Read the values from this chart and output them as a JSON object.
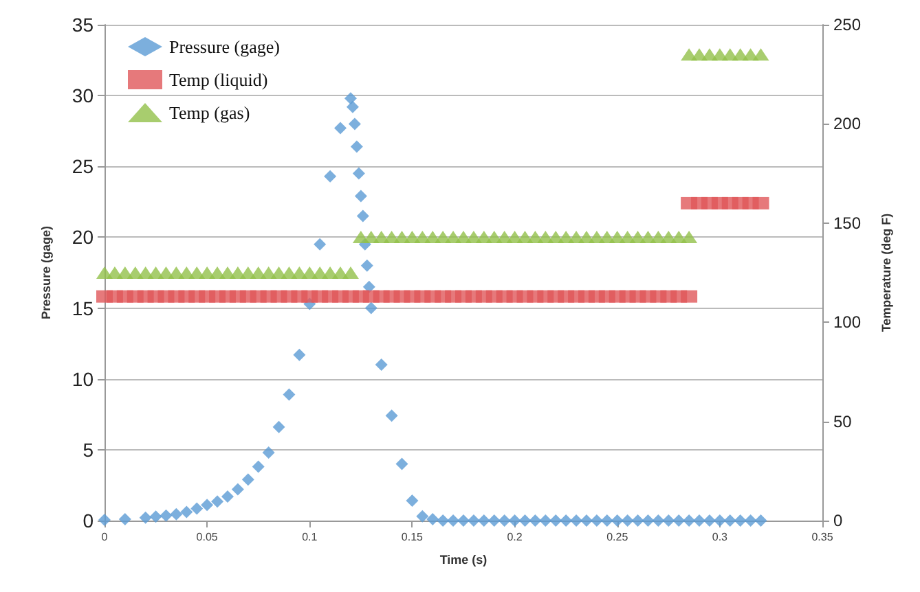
{
  "chart_data": {
    "type": "scatter",
    "xlabel": "Time (s)",
    "ylabel": "Pressure (gage)",
    "y2label": "Temperature (deg F)",
    "xlim": [
      0,
      0.35
    ],
    "xticks": [
      0,
      0.05,
      0.1,
      0.15,
      0.2,
      0.25,
      0.3,
      0.35
    ],
    "ylim": [
      0,
      35
    ],
    "yticks": [
      0,
      5,
      10,
      15,
      20,
      25,
      30,
      35
    ],
    "y2lim": [
      0,
      250
    ],
    "y2ticks": [
      0,
      50,
      100,
      150,
      200,
      250
    ],
    "grid": "y",
    "legend": "top left",
    "series": [
      {
        "name": "Pressure (gage)",
        "color": "#5b9bd5",
        "marker": "diamond",
        "x": [
          0,
          0.01,
          0.02,
          0.025,
          0.03,
          0.035,
          0.04,
          0.045,
          0.05,
          0.055,
          0.06,
          0.065,
          0.07,
          0.075,
          0.08,
          0.085,
          0.09,
          0.095,
          0.1,
          0.105,
          0.11,
          0.115,
          0.12,
          0.121,
          0.122,
          0.123,
          0.124,
          0.125,
          0.126,
          0.127,
          0.128,
          0.129,
          0.13,
          0.135,
          0.14,
          0.145,
          0.15,
          0.155,
          0.16,
          0.165,
          0.17,
          0.175,
          0.18,
          0.185,
          0.19,
          0.195,
          0.2,
          0.205,
          0.21,
          0.215,
          0.22,
          0.225,
          0.23,
          0.235,
          0.24,
          0.245,
          0.25,
          0.255,
          0.26,
          0.265,
          0.27,
          0.275,
          0.28,
          0.285,
          0.29,
          0.295,
          0.3,
          0.305,
          0.31,
          0.315,
          0.32
        ],
        "values": [
          0.05,
          0.1,
          0.2,
          0.28,
          0.35,
          0.45,
          0.6,
          0.85,
          1.1,
          1.35,
          1.7,
          2.2,
          2.9,
          3.8,
          4.8,
          6.6,
          8.9,
          11.7,
          15.3,
          19.5,
          24.3,
          27.7,
          29.8,
          29.2,
          28,
          26.4,
          24.5,
          22.9,
          21.5,
          19.5,
          18,
          16.5,
          15,
          11,
          7.4,
          4,
          1.4,
          0.3,
          0.1,
          0,
          0,
          0,
          0,
          0,
          0,
          0,
          0,
          0,
          0,
          0,
          0,
          0,
          0,
          0,
          0,
          0,
          0,
          0,
          0,
          0,
          0,
          0,
          0,
          0,
          0,
          0,
          0,
          0,
          0,
          0,
          0
        ]
      },
      {
        "name": "Temp (liquid)",
        "color": "#e0585a",
        "marker": "square",
        "axis": "y2",
        "x": [
          0,
          0.005,
          0.01,
          0.015,
          0.02,
          0.025,
          0.03,
          0.035,
          0.04,
          0.045,
          0.05,
          0.055,
          0.06,
          0.065,
          0.07,
          0.075,
          0.08,
          0.085,
          0.09,
          0.095,
          0.1,
          0.105,
          0.11,
          0.115,
          0.12,
          0.125,
          0.13,
          0.135,
          0.14,
          0.145,
          0.15,
          0.155,
          0.16,
          0.165,
          0.17,
          0.175,
          0.18,
          0.185,
          0.19,
          0.195,
          0.2,
          0.205,
          0.21,
          0.215,
          0.22,
          0.225,
          0.23,
          0.235,
          0.24,
          0.245,
          0.25,
          0.255,
          0.26,
          0.265,
          0.27,
          0.275,
          0.28,
          0.285,
          0.285,
          0.29,
          0.295,
          0.3,
          0.305,
          0.31,
          0.315,
          0.32
        ],
        "values": [
          113,
          113,
          113,
          113,
          113,
          113,
          113,
          113,
          113,
          113,
          113,
          113,
          113,
          113,
          113,
          113,
          113,
          113,
          113,
          113,
          113,
          113,
          113,
          113,
          113,
          113,
          113,
          113,
          113,
          113,
          113,
          113,
          113,
          113,
          113,
          113,
          113,
          113,
          113,
          113,
          113,
          113,
          113,
          113,
          113,
          113,
          113,
          113,
          113,
          113,
          113,
          113,
          113,
          113,
          113,
          113,
          113,
          113,
          160,
          160,
          160,
          160,
          160,
          160,
          160,
          160
        ]
      },
      {
        "name": "Temp (gas)",
        "color": "#92c04a",
        "marker": "triangle",
        "axis": "y2",
        "x": [
          0,
          0.005,
          0.01,
          0.015,
          0.02,
          0.025,
          0.03,
          0.035,
          0.04,
          0.045,
          0.05,
          0.055,
          0.06,
          0.065,
          0.07,
          0.075,
          0.08,
          0.085,
          0.09,
          0.095,
          0.1,
          0.105,
          0.11,
          0.115,
          0.12,
          0.125,
          0.13,
          0.135,
          0.14,
          0.145,
          0.15,
          0.155,
          0.16,
          0.165,
          0.17,
          0.175,
          0.18,
          0.185,
          0.19,
          0.195,
          0.2,
          0.205,
          0.21,
          0.215,
          0.22,
          0.225,
          0.23,
          0.235,
          0.24,
          0.245,
          0.25,
          0.255,
          0.26,
          0.265,
          0.27,
          0.275,
          0.28,
          0.285,
          0.285,
          0.29,
          0.295,
          0.3,
          0.305,
          0.31,
          0.315,
          0.32
        ],
        "values": [
          125,
          125,
          125,
          125,
          125,
          125,
          125,
          125,
          125,
          125,
          125,
          125,
          125,
          125,
          125,
          125,
          125,
          125,
          125,
          125,
          125,
          125,
          125,
          125,
          125,
          143,
          143,
          143,
          143,
          143,
          143,
          143,
          143,
          143,
          143,
          143,
          143,
          143,
          143,
          143,
          143,
          143,
          143,
          143,
          143,
          143,
          143,
          143,
          143,
          143,
          143,
          143,
          143,
          143,
          143,
          143,
          143,
          143,
          235,
          235,
          235,
          235,
          235,
          235,
          235,
          235
        ]
      }
    ]
  }
}
